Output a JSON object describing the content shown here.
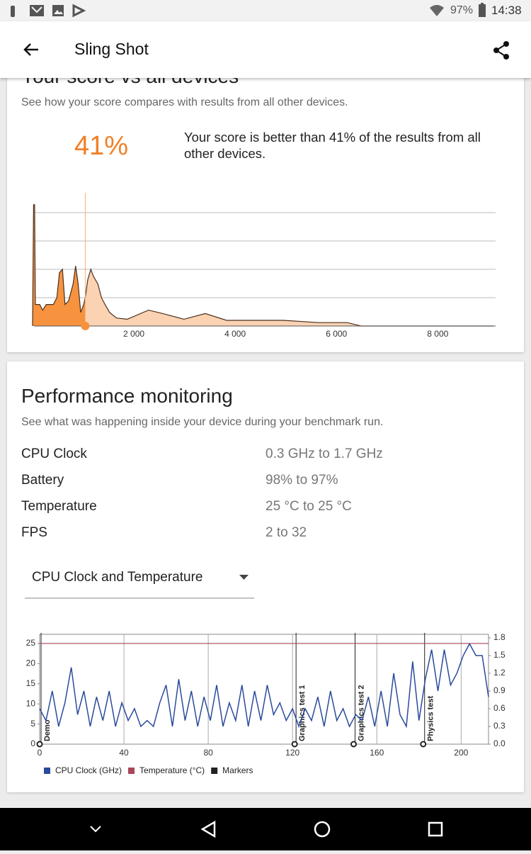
{
  "status_bar": {
    "battery": "97%",
    "time": "14:38"
  },
  "app_bar": {
    "title": "Sling Shot"
  },
  "score_card": {
    "heading": "Your score vs all devices",
    "subtitle": "See how your score compares with results from all other devices.",
    "percentile": "41%",
    "summary": "Your score is better than 41% of the results from all other devices."
  },
  "performance": {
    "heading": "Performance monitoring",
    "subtitle": "See what was happening inside your device during your benchmark run.",
    "rows": [
      [
        "CPU Clock",
        "0.3 GHz to 1.7 GHz"
      ],
      [
        "Battery",
        "98% to 97%"
      ],
      [
        "Temperature",
        "25 °C to 25 °C"
      ],
      [
        "FPS",
        "2 to 32"
      ]
    ],
    "dropdown": "CPU Clock and Temperature"
  },
  "chart_data": [
    {
      "type": "area",
      "x": [
        0,
        20,
        40,
        55,
        140,
        200,
        270,
        340,
        410,
        480,
        530,
        590,
        640,
        710,
        800,
        850,
        900,
        950,
        1010,
        1040,
        1090,
        1150,
        1200,
        1290,
        1360,
        1430,
        1520,
        1660,
        1870,
        2290,
        2570,
        2990,
        3410,
        3830,
        4390,
        4950,
        5650,
        6210,
        6490,
        9100
      ],
      "values": [
        0,
        107,
        107,
        19,
        19,
        14,
        19,
        19,
        19,
        25,
        47,
        50,
        19,
        22,
        37,
        53,
        37,
        12,
        19,
        25,
        41,
        50,
        44,
        37,
        25,
        19,
        12,
        7,
        6,
        14,
        11,
        6,
        11,
        5,
        5,
        5,
        3,
        3,
        0,
        0
      ],
      "xlim": [
        0,
        9100
      ],
      "ylim": [
        0,
        110
      ],
      "xticks": [
        {
          "value": 2000,
          "label": "2 000"
        },
        {
          "value": 4000,
          "label": "4 000"
        },
        {
          "value": 6000,
          "label": "6 000"
        },
        {
          "value": 8000,
          "label": "8 000"
        }
      ],
      "score_x": 1040,
      "color": "#fbd3b3",
      "highlight_color": "#f7923f"
    },
    {
      "type": "line",
      "xlim": [
        0,
        213
      ],
      "ylim": [
        0,
        26.4
      ],
      "y2lim": [
        0,
        1.8
      ],
      "xticks": [
        0,
        40,
        80,
        120,
        160,
        200
      ],
      "yticks": [
        0,
        5,
        10,
        15,
        20,
        25
      ],
      "y2ticks": [
        {
          "value": 0,
          "label": "0.0"
        },
        {
          "value": 0.3,
          "label": "0.3"
        },
        {
          "value": 0.6,
          "label": "0.6"
        },
        {
          "value": 0.9,
          "label": "0.9"
        },
        {
          "value": 1.2,
          "label": "1.2"
        },
        {
          "value": 1.5,
          "label": "1.5"
        },
        {
          "value": 1.8,
          "label": "1.8"
        }
      ],
      "series": [
        {
          "name": "CPU Clock (GHz)",
          "color": "#2a4b9b",
          "axis": "y2",
          "x": [
            0,
            3,
            6,
            9,
            12,
            15,
            18,
            21,
            24,
            27,
            30,
            33,
            36,
            39,
            42,
            45,
            48,
            51,
            54,
            57,
            60,
            63,
            66,
            69,
            72,
            75,
            78,
            81,
            84,
            87,
            90,
            93,
            96,
            99,
            102,
            105,
            108,
            111,
            114,
            117,
            120,
            123,
            126,
            129,
            132,
            135,
            138,
            141,
            144,
            147,
            150,
            153,
            156,
            159,
            162,
            165,
            168,
            171,
            174,
            177,
            180,
            183,
            186,
            189,
            192,
            195,
            198,
            201,
            204,
            207,
            210,
            213
          ],
          "values": [
            0.6,
            0.4,
            0.9,
            0.3,
            0.7,
            1.3,
            0.5,
            0.9,
            0.3,
            0.8,
            0.4,
            0.9,
            0.3,
            0.7,
            0.4,
            0.6,
            0.3,
            0.4,
            0.3,
            0.7,
            1.0,
            0.3,
            1.1,
            0.4,
            0.9,
            0.3,
            0.8,
            0.4,
            1.0,
            0.3,
            0.7,
            0.4,
            1.0,
            0.3,
            0.9,
            0.4,
            1.0,
            0.5,
            0.7,
            0.4,
            0.6,
            0.3,
            0.6,
            0.4,
            0.8,
            0.3,
            0.9,
            0.4,
            0.6,
            0.3,
            0.5,
            0.4,
            0.8,
            0.3,
            0.9,
            0.3,
            1.2,
            0.5,
            0.3,
            1.4,
            0.4,
            1.1,
            1.6,
            0.9,
            1.6,
            1.0,
            1.2,
            1.5,
            1.7,
            1.5,
            1.5,
            0.8
          ]
        },
        {
          "name": "Temperature (°C)",
          "color": "#a94559",
          "x": [
            0,
            213
          ],
          "values": [
            25,
            25
          ]
        }
      ],
      "markers": {
        "name": "Markers",
        "color": "#222222",
        "x": [
          0,
          121,
          149,
          182
        ],
        "labels": [
          "Demo",
          "Graphics test 1",
          "Graphics test 2",
          "Physics test"
        ]
      }
    }
  ]
}
